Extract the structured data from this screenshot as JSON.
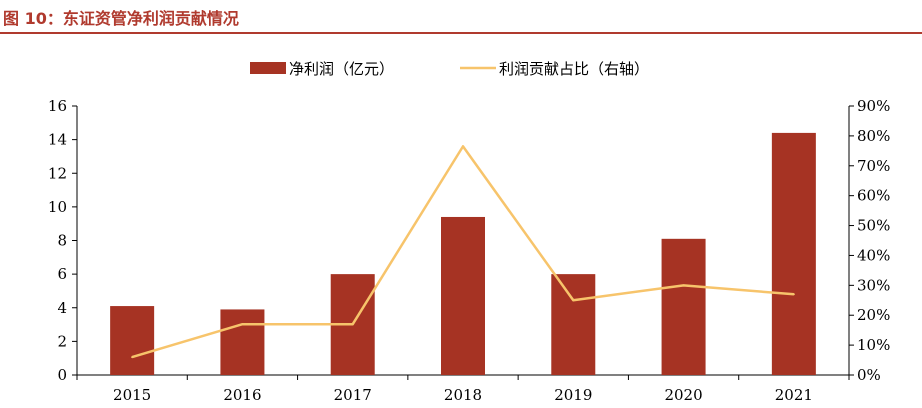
{
  "title": "图 10：东证资管净利润贡献情况",
  "chart_data": {
    "type": "bar",
    "categories": [
      "2015",
      "2016",
      "2017",
      "2018",
      "2019",
      "2020",
      "2021"
    ],
    "series": [
      {
        "name": "净利润（亿元）",
        "type": "bar",
        "axis": "left",
        "values": [
          4.1,
          3.9,
          6.0,
          9.4,
          6.0,
          8.1,
          14.4
        ],
        "color": "#a63323"
      },
      {
        "name": "利润贡献占比（右轴）",
        "type": "line",
        "axis": "right",
        "values": [
          0.06,
          0.17,
          0.17,
          0.765,
          0.25,
          0.3,
          0.27
        ],
        "color": "#f7c46b"
      }
    ],
    "ylim_left": [
      0,
      16
    ],
    "yticks_left": [
      "0",
      "2",
      "4",
      "6",
      "8",
      "10",
      "12",
      "14",
      "16"
    ],
    "ylim_right": [
      0,
      0.9
    ],
    "yticks_right": [
      "0%",
      "10%",
      "20%",
      "30%",
      "40%",
      "50%",
      "60%",
      "70%",
      "80%",
      "90%"
    ],
    "legend_position": "top",
    "grid": false
  }
}
